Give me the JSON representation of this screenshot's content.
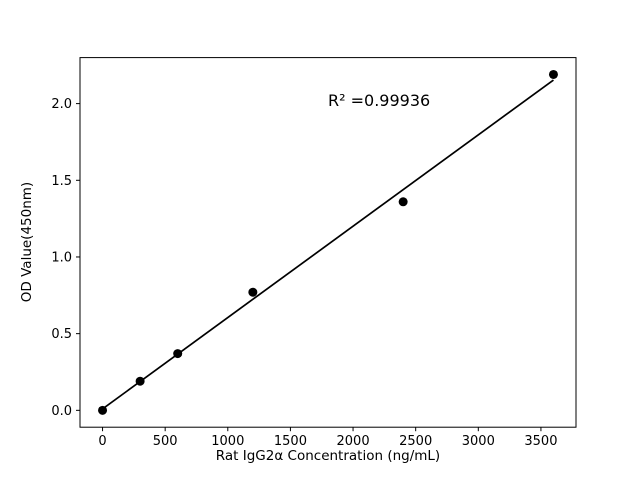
{
  "figure": {
    "background": "#ffffff"
  },
  "chart_data": {
    "type": "scatter",
    "title": "",
    "x": [
      0,
      300,
      600,
      1200,
      2400,
      3600
    ],
    "y": [
      0.0,
      0.19,
      0.37,
      0.77,
      1.36,
      2.19
    ],
    "fit_line": {
      "slope": 0.0005957,
      "intercept": 0.0091,
      "x_start": 0,
      "x_end": 3600
    },
    "annotation": "R² =0.99936",
    "r_squared": 0.99936,
    "xlabel": "Rat IgG2α Concentration (ng/mL)",
    "ylabel": "OD Value(450nm)",
    "xlim": [
      -180,
      3780
    ],
    "ylim": [
      -0.11,
      2.3
    ],
    "xticks": [
      0,
      500,
      1000,
      1500,
      2000,
      2500,
      3000,
      3500
    ],
    "yticks": [
      0.0,
      0.5,
      1.0,
      1.5,
      2.0
    ],
    "grid": false,
    "legend": null,
    "marker_color": "#000000",
    "line_color": "#000000",
    "frame_color": "#000000"
  }
}
